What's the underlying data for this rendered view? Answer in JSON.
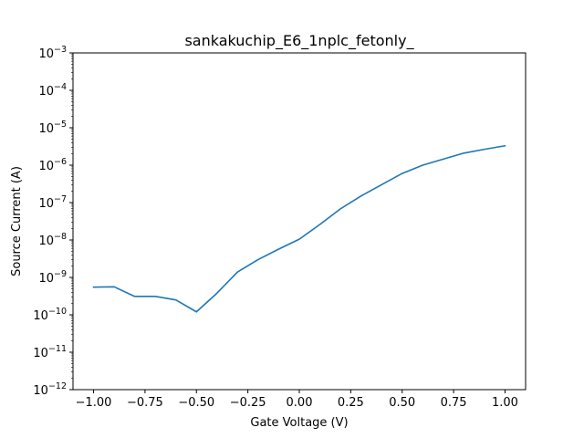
{
  "chart_data": {
    "type": "line",
    "title": "sankakuchip_E6_1nplc_fetonly_",
    "xlabel": "Gate Voltage (V)",
    "ylabel": "Source Current (A)",
    "xlim": [
      -1.1,
      1.1
    ],
    "ylim": [
      1e-12,
      0.001
    ],
    "yscale": "log",
    "grid": false,
    "x_ticks": [
      -1.0,
      -0.75,
      -0.5,
      -0.25,
      0.0,
      0.25,
      0.5,
      0.75,
      1.0
    ],
    "x_tick_labels": [
      "−1.00",
      "−0.75",
      "−0.50",
      "−0.25",
      "0.00",
      "0.25",
      "0.50",
      "0.75",
      "1.00"
    ],
    "y_tick_exponents": [
      -12,
      -11,
      -10,
      -9,
      -8,
      -7,
      -6,
      -5,
      -4,
      -3
    ],
    "y_tick_base": "10",
    "series": [
      {
        "color": "#1f77b4",
        "x": [
          -1.0,
          -0.9,
          -0.8,
          -0.7,
          -0.6,
          -0.5,
          -0.4,
          -0.3,
          -0.2,
          -0.1,
          0.0,
          0.1,
          0.2,
          0.3,
          0.4,
          0.5,
          0.6,
          0.7,
          0.8,
          0.9,
          1.0
        ],
        "y": [
          5.5e-10,
          5.6e-10,
          3.1e-10,
          3.1e-10,
          2.5e-10,
          1.2e-10,
          3.8e-10,
          1.4e-09,
          3e-09,
          5.7e-09,
          1.05e-08,
          2.6e-08,
          6.8e-08,
          1.5e-07,
          3e-07,
          6e-07,
          1e-06,
          1.45e-06,
          2.1e-06,
          2.65e-06,
          3.3e-06
        ]
      }
    ]
  }
}
